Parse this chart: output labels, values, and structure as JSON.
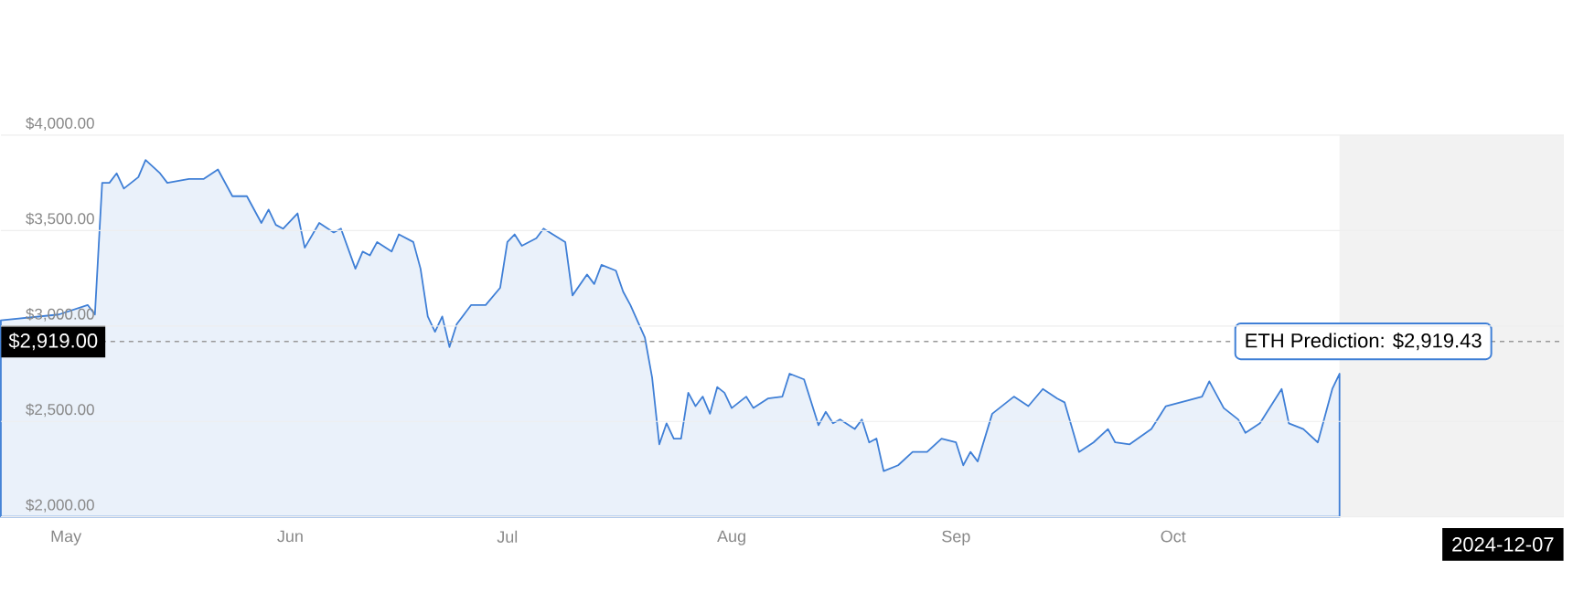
{
  "chart_data": {
    "type": "area",
    "color": "#3f7fd6",
    "x": [
      "2024-04-22",
      "2024-04-24",
      "2024-04-30",
      "2024-05-04",
      "2024-05-05",
      "2024-05-06",
      "2024-05-07",
      "2024-05-08",
      "2024-05-09",
      "2024-05-11",
      "2024-05-12",
      "2024-05-14",
      "2024-05-15",
      "2024-05-18",
      "2024-05-20",
      "2024-05-22",
      "2024-05-24",
      "2024-05-26",
      "2024-05-28",
      "2024-05-29",
      "2024-05-30",
      "2024-05-31",
      "2024-06-02",
      "2024-06-03",
      "2024-06-05",
      "2024-06-07",
      "2024-06-08",
      "2024-06-10",
      "2024-06-11",
      "2024-06-12",
      "2024-06-13",
      "2024-06-15",
      "2024-06-16",
      "2024-06-18",
      "2024-06-19",
      "2024-06-20",
      "2024-06-21",
      "2024-06-22",
      "2024-06-23",
      "2024-06-24",
      "2024-06-26",
      "2024-06-28",
      "2024-06-30",
      "2024-07-01",
      "2024-07-02",
      "2024-07-03",
      "2024-07-05",
      "2024-07-06",
      "2024-07-09",
      "2024-07-10",
      "2024-07-12",
      "2024-07-13",
      "2024-07-14",
      "2024-07-16",
      "2024-07-17",
      "2024-07-18",
      "2024-07-20",
      "2024-07-21",
      "2024-07-22",
      "2024-07-23",
      "2024-07-24",
      "2024-07-25",
      "2024-07-26",
      "2024-07-27",
      "2024-07-28",
      "2024-07-29",
      "2024-07-30",
      "2024-07-31",
      "2024-08-01",
      "2024-08-03",
      "2024-08-04",
      "2024-08-06",
      "2024-08-08",
      "2024-08-09",
      "2024-08-11",
      "2024-08-13",
      "2024-08-14",
      "2024-08-15",
      "2024-08-16",
      "2024-08-18",
      "2024-08-19",
      "2024-08-20",
      "2024-08-21",
      "2024-08-22",
      "2024-08-24",
      "2024-08-26",
      "2024-08-28",
      "2024-08-30",
      "2024-09-01",
      "2024-09-02",
      "2024-09-03",
      "2024-09-04",
      "2024-09-06",
      "2024-09-08",
      "2024-09-09",
      "2024-09-11",
      "2024-09-13",
      "2024-09-15",
      "2024-09-16",
      "2024-09-18",
      "2024-09-20",
      "2024-09-22",
      "2024-09-23",
      "2024-09-25",
      "2024-09-28",
      "2024-09-30",
      "2024-10-03",
      "2024-10-05",
      "2024-10-06",
      "2024-10-08",
      "2024-10-10",
      "2024-10-11",
      "2024-10-13",
      "2024-10-16",
      "2024-10-17",
      "2024-10-19",
      "2024-10-21",
      "2024-10-23",
      "2024-10-24"
    ],
    "values": [
      3030,
      null,
      3060,
      3110,
      3060,
      3750,
      3750,
      3800,
      3720,
      3780,
      3870,
      3800,
      3750,
      3770,
      3770,
      3820,
      3680,
      3680,
      3540,
      3610,
      3530,
      3510,
      3590,
      3410,
      3540,
      3490,
      3510,
      3300,
      3390,
      3370,
      3440,
      3390,
      3480,
      3440,
      3300,
      3050,
      2970,
      3050,
      2890,
      3010,
      3110,
      3110,
      3200,
      3440,
      3480,
      3420,
      3460,
      3510,
      3440,
      3160,
      3270,
      3220,
      3320,
      3290,
      3180,
      3110,
      2940,
      2730,
      2380,
      2490,
      2410,
      2410,
      2650,
      2580,
      2630,
      2540,
      2680,
      2650,
      2570,
      2630,
      2570,
      2620,
      2630,
      2750,
      2720,
      2480,
      2550,
      2490,
      2510,
      2460,
      2510,
      2390,
      2410,
      2240,
      2270,
      2340,
      2340,
      2410,
      2390,
      2270,
      2340,
      2290,
      2540,
      2600,
      2630,
      2580,
      2670,
      2620,
      2600,
      2340,
      2390,
      2460,
      2390,
      2380,
      2460,
      2580,
      2610,
      2630,
      2710,
      2570,
      2510,
      2440,
      2490,
      2670,
      2490,
      2460,
      2390,
      2670,
      2750
    ],
    "xlim": [
      "2024-04-22",
      "2024-11-24"
    ],
    "xticks": [
      {
        "value": "2024-05-01",
        "label": "May"
      },
      {
        "value": "2024-06-01",
        "label": "Jun"
      },
      {
        "value": "2024-07-01",
        "label": "Jul"
      },
      {
        "value": "2024-08-01",
        "label": "Aug"
      },
      {
        "value": "2024-09-01",
        "label": "Sep"
      },
      {
        "value": "2024-10-01",
        "label": "Oct"
      }
    ],
    "ylim": [
      2000,
      4000
    ],
    "yticks": [
      {
        "value": 2000,
        "label": "$2,000.00"
      },
      {
        "value": 2500,
        "label": "$2,500.00"
      },
      {
        "value": 3000,
        "label": "$3,000.00"
      },
      {
        "value": 3500,
        "label": "$3,500.00"
      },
      {
        "value": 4000,
        "label": "$4,000.00"
      }
    ],
    "grid": "y",
    "bands": [
      {
        "axis": "x",
        "from": "2024-10-24",
        "to": "2024-11-24",
        "color": "#f2f2f2"
      }
    ],
    "ref_lines": [
      {
        "axis": "y",
        "value": 2919,
        "label": "$2,919.00",
        "color": "#999999",
        "line_style": "dashed"
      }
    ],
    "annotations": [
      {
        "text": "ETH Prediction: $2,919.43",
        "x": "2024-10-24",
        "y": 2919.43
      },
      "2024-12-07"
    ]
  }
}
